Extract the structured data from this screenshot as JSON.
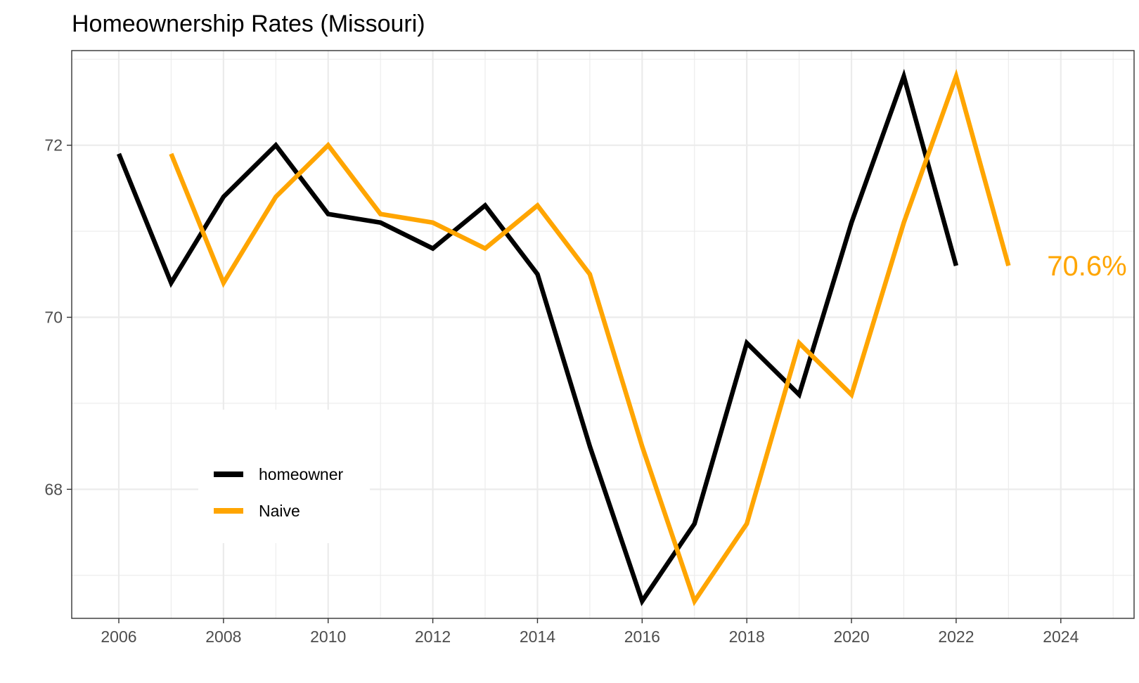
{
  "chart_data": {
    "type": "line",
    "title": "Homeownership Rates (Missouri)",
    "xlabel": "",
    "ylabel": "",
    "xlim": [
      2005.1,
      2025.4
    ],
    "ylim": [
      66.5,
      73.1
    ],
    "x_ticks": [
      2006,
      2008,
      2010,
      2012,
      2014,
      2016,
      2018,
      2020,
      2022,
      2024
    ],
    "y_ticks": [
      68,
      70,
      72
    ],
    "grid": true,
    "legend_position": "bottom-left inside",
    "series": [
      {
        "name": "homeowner",
        "color": "#000000",
        "x": [
          2006,
          2007,
          2008,
          2009,
          2010,
          2011,
          2012,
          2013,
          2014,
          2015,
          2016,
          2017,
          2018,
          2019,
          2020,
          2021,
          2022
        ],
        "values": [
          71.9,
          70.4,
          71.4,
          72.0,
          71.2,
          71.1,
          70.8,
          71.3,
          70.5,
          68.5,
          66.7,
          67.6,
          69.7,
          69.1,
          71.1,
          72.8,
          70.6
        ]
      },
      {
        "name": "Naive",
        "color": "#FFA500",
        "x": [
          2007,
          2008,
          2009,
          2010,
          2011,
          2012,
          2013,
          2014,
          2015,
          2016,
          2017,
          2018,
          2019,
          2020,
          2021,
          2022,
          2023
        ],
        "values": [
          71.9,
          70.4,
          71.4,
          72.0,
          71.2,
          71.1,
          70.8,
          71.3,
          70.5,
          68.5,
          66.7,
          67.6,
          69.7,
          69.1,
          71.1,
          72.8,
          70.6
        ]
      }
    ],
    "annotations": [
      {
        "text": "70.6%",
        "x": 2024.5,
        "y": 70.6,
        "color": "#FFA500"
      }
    ]
  }
}
